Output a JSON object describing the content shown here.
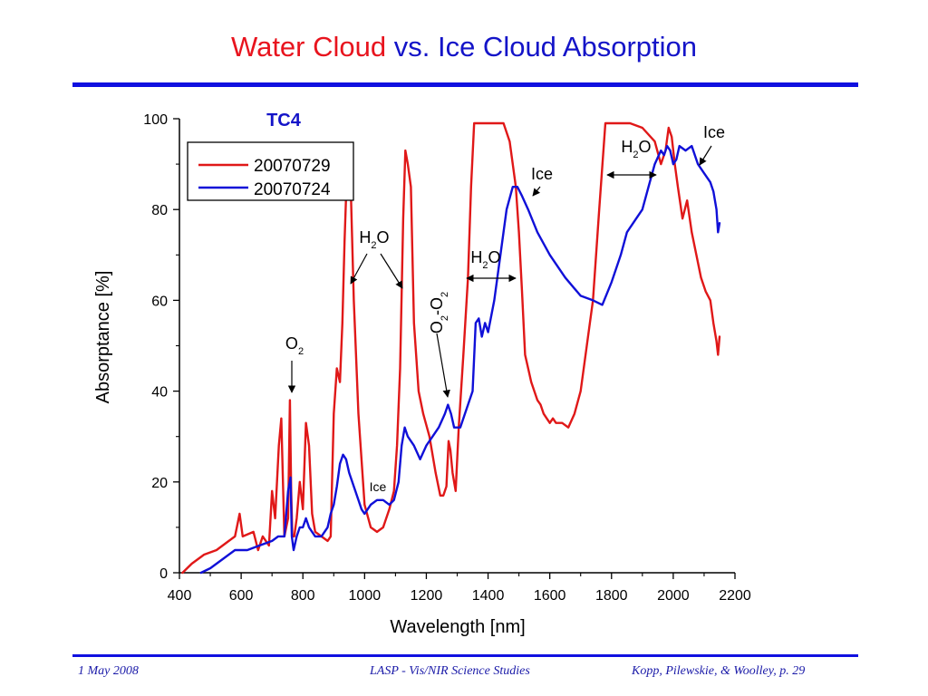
{
  "slide": {
    "title_part1": "Water Cloud",
    "title_part2": "vs. Ice Cloud Absorption",
    "accent_red": "#e8141e",
    "accent_blue": "#1414c8"
  },
  "footer": {
    "date": "1 May 2008",
    "center": "LASP - Vis/NIR Science Studies",
    "right": "Kopp, Pilewskie, & Woolley, p. 29"
  },
  "chart_data": {
    "type": "line",
    "title": "TC4",
    "xlabel": "Wavelength [nm]",
    "ylabel": "Absorptance [%]",
    "xlim": [
      400,
      2200
    ],
    "ylim": [
      0,
      100
    ],
    "xticks": [
      400,
      600,
      800,
      1000,
      1200,
      1400,
      1600,
      1800,
      2000,
      2200
    ],
    "yticks": [
      0,
      20,
      40,
      60,
      80,
      100
    ],
    "grid": false,
    "legend_position": "top-left",
    "series": [
      {
        "name": "20070729",
        "color": "#e01818",
        "x": [
          410,
          440,
          480,
          520,
          560,
          580,
          595,
          605,
          640,
          655,
          670,
          690,
          700,
          710,
          722,
          730,
          740,
          752,
          758,
          762,
          766,
          772,
          780,
          790,
          800,
          810,
          820,
          830,
          840,
          860,
          880,
          890,
          900,
          910,
          920,
          928,
          935,
          940,
          948,
          955,
          965,
          980,
          1000,
          1020,
          1040,
          1060,
          1080,
          1095,
          1105,
          1115,
          1125,
          1132,
          1140,
          1150,
          1160,
          1175,
          1190,
          1210,
          1230,
          1245,
          1255,
          1265,
          1272,
          1278,
          1285,
          1295,
          1305,
          1320,
          1335,
          1345,
          1355,
          1400,
          1450,
          1470,
          1490,
          1500,
          1510,
          1520,
          1530,
          1540,
          1550,
          1560,
          1570,
          1580,
          1590,
          1600,
          1610,
          1620,
          1640,
          1660,
          1680,
          1700,
          1720,
          1740,
          1760,
          1780,
          1800,
          1820,
          1860,
          1900,
          1940,
          1960,
          1975,
          1985,
          1995,
          2005,
          2015,
          2030,
          2045,
          2060,
          2075,
          2090,
          2105,
          2120,
          2130,
          2140,
          2145,
          2150
        ],
        "y": [
          0,
          2,
          4,
          5,
          7,
          8,
          13,
          8,
          9,
          5,
          8,
          6,
          18,
          12,
          28,
          34,
          8,
          12,
          38,
          18,
          8,
          8,
          12,
          20,
          14,
          33,
          28,
          13,
          9,
          8,
          7,
          8,
          35,
          45,
          42,
          55,
          73,
          83,
          90,
          85,
          60,
          35,
          15,
          10,
          9,
          10,
          14,
          18,
          28,
          45,
          78,
          93,
          90,
          85,
          55,
          40,
          35,
          30,
          22,
          17,
          17,
          19,
          29,
          27,
          22,
          18,
          32,
          48,
          65,
          85,
          99,
          99,
          99,
          95,
          85,
          75,
          62,
          48,
          45,
          42,
          40,
          38,
          37,
          35,
          34,
          33,
          34,
          33,
          33,
          32,
          35,
          40,
          50,
          60,
          80,
          99,
          99,
          99,
          99,
          98,
          95,
          90,
          93,
          98,
          96,
          90,
          85,
          78,
          82,
          75,
          70,
          65,
          62,
          60,
          55,
          51,
          48,
          52
        ]
      },
      {
        "name": "20070724",
        "color": "#1010d8",
        "x": [
          470,
          500,
          540,
          580,
          620,
          660,
          700,
          720,
          740,
          752,
          760,
          764,
          770,
          780,
          790,
          800,
          810,
          820,
          840,
          860,
          880,
          890,
          900,
          910,
          920,
          930,
          940,
          950,
          960,
          970,
          980,
          990,
          1000,
          1010,
          1020,
          1040,
          1060,
          1080,
          1095,
          1110,
          1120,
          1130,
          1140,
          1160,
          1180,
          1200,
          1220,
          1240,
          1260,
          1270,
          1280,
          1290,
          1310,
          1330,
          1350,
          1360,
          1370,
          1380,
          1390,
          1400,
          1420,
          1440,
          1460,
          1480,
          1495,
          1510,
          1530,
          1560,
          1600,
          1650,
          1700,
          1740,
          1770,
          1800,
          1830,
          1850,
          1880,
          1900,
          1920,
          1940,
          1960,
          1970,
          1980,
          1990,
          2000,
          2010,
          2020,
          2040,
          2060,
          2080,
          2100,
          2120,
          2130,
          2140,
          2145,
          2150
        ],
        "y": [
          0,
          1,
          3,
          5,
          5,
          6,
          7,
          8,
          8,
          18,
          21,
          8,
          5,
          8,
          10,
          10,
          12,
          10,
          8,
          8,
          10,
          13,
          15,
          19,
          24,
          26,
          25,
          22,
          20,
          18,
          16,
          14,
          13,
          14,
          15,
          16,
          16,
          15,
          16,
          20,
          28,
          32,
          30,
          28,
          25,
          28,
          30,
          32,
          35,
          37,
          35,
          32,
          32,
          36,
          40,
          55,
          56,
          52,
          55,
          53,
          60,
          70,
          80,
          85,
          85,
          83,
          80,
          75,
          70,
          65,
          61,
          60,
          59,
          64,
          70,
          75,
          78,
          80,
          85,
          90,
          93,
          92,
          94,
          93,
          90,
          91,
          94,
          93,
          94,
          90,
          88,
          86,
          84,
          80,
          75,
          77
        ]
      }
    ],
    "annotations": [
      {
        "label": "O",
        "sub": "2"
      },
      {
        "label": "H",
        "sub": "2",
        "suffix": "O"
      },
      {
        "label": "Ice"
      },
      {
        "label": "O",
        "sub": "2",
        "mid": "-O",
        "sub2": "2"
      },
      {
        "label": "H",
        "sub": "2",
        "suffix": "O"
      },
      {
        "label": "Ice"
      },
      {
        "label": "H",
        "sub": "2",
        "suffix": "O"
      },
      {
        "label": "Ice"
      }
    ]
  }
}
